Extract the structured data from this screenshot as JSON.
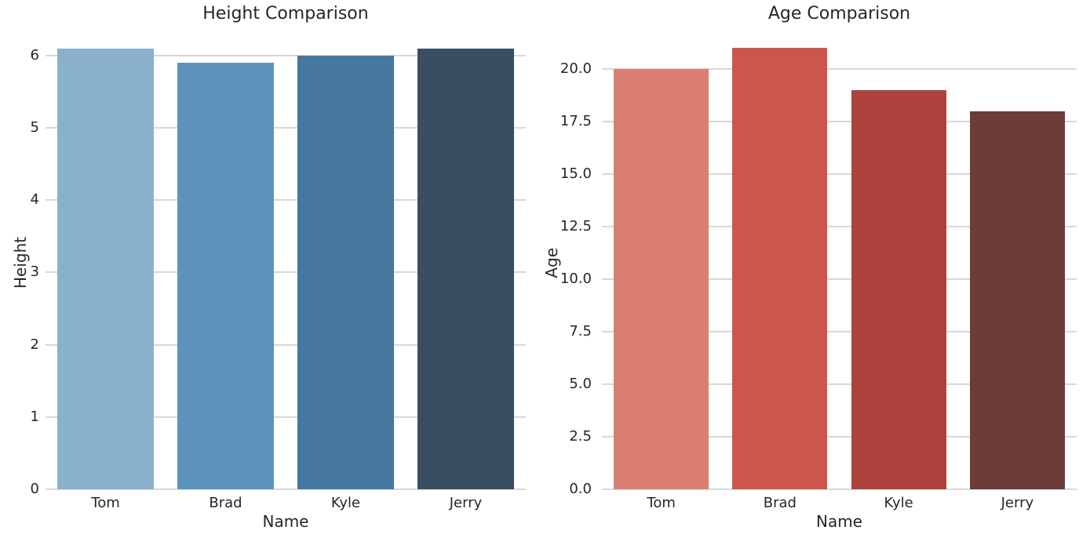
{
  "style": {
    "background": "#ffffff",
    "grid_color": "#d8d8d8",
    "text_color": "#262626"
  },
  "chart_data": [
    {
      "type": "bar",
      "title": "Height Comparison",
      "xlabel": "Name",
      "ylabel": "Height",
      "categories": [
        "Tom",
        "Brad",
        "Kyle",
        "Jerry"
      ],
      "values": [
        6.1,
        5.9,
        6.0,
        6.1
      ],
      "bar_colors": [
        "#8ab1cc",
        "#5d94be",
        "#46779e",
        "#3a4e61"
      ],
      "ylim": [
        0,
        6.26
      ],
      "bar_width_fraction": 0.8,
      "grid": true,
      "legend": null,
      "yticks": {
        "values": [
          0,
          1,
          2,
          3,
          4,
          5,
          6
        ],
        "labels": [
          "0",
          "1",
          "2",
          "3",
          "4",
          "5",
          "6"
        ]
      }
    },
    {
      "type": "bar",
      "title": "Age Comparison",
      "xlabel": "Name",
      "ylabel": "Age",
      "categories": [
        "Tom",
        "Brad",
        "Kyle",
        "Jerry"
      ],
      "values": [
        20,
        21,
        19,
        18
      ],
      "bar_colors": [
        "#d97e70",
        "#cd554d",
        "#ad423d",
        "#6e3b38"
      ],
      "ylim": [
        0,
        21.53
      ],
      "bar_width_fraction": 0.8,
      "grid": true,
      "legend": null,
      "yticks": {
        "values": [
          0,
          2.5,
          5,
          7.5,
          10,
          12.5,
          15,
          17.5,
          20
        ],
        "labels": [
          "0.0",
          "2.5",
          "5.0",
          "7.5",
          "10.0",
          "12.5",
          "15.0",
          "17.5",
          "20.0"
        ]
      }
    }
  ]
}
